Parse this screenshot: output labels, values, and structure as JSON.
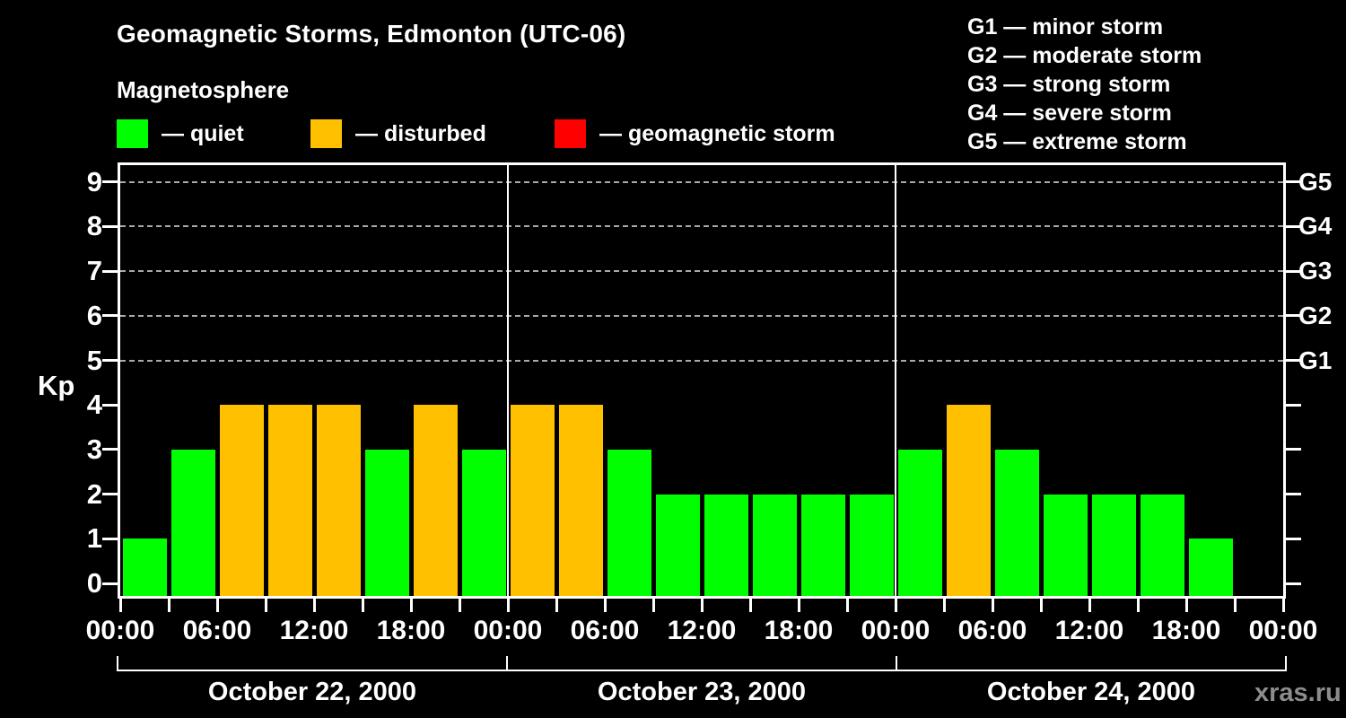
{
  "title": "Geomagnetic Storms, Edmonton (UTC-06)",
  "subtitle": "Magnetosphere",
  "legend": {
    "items": [
      {
        "name": "quiet",
        "label": "— quiet",
        "color": "#00ff00"
      },
      {
        "name": "disturbed",
        "label": "— disturbed",
        "color": "#ffc000"
      },
      {
        "name": "storm",
        "label": "— geomagnetic storm",
        "color": "#ff0000"
      }
    ]
  },
  "storm_scale": {
    "items": [
      "G1 — minor storm",
      "G2 — moderate storm",
      "G3 — strong storm",
      "G4 — severe storm",
      "G5 — extreme storm"
    ]
  },
  "watermark": "xras.ru",
  "chart_data": {
    "type": "bar",
    "title": "Geomagnetic Storms, Edmonton (UTC-06)",
    "ylabel": "Kp",
    "ylim": [
      0,
      9
    ],
    "yticks": [
      0,
      1,
      2,
      3,
      4,
      5,
      6,
      7,
      8,
      9
    ],
    "gridlines_at": [
      5,
      6,
      7,
      8,
      9
    ],
    "grid": "dashed, only at Kp 5-9",
    "legend_position": "top",
    "right_axis": [
      {
        "kp": 9,
        "label": "G5"
      },
      {
        "kp": 8,
        "label": "G4"
      },
      {
        "kp": 7,
        "label": "G3"
      },
      {
        "kp": 6,
        "label": "G2"
      },
      {
        "kp": 5,
        "label": "G1"
      }
    ],
    "x_tick_interval_hours": 3,
    "x_label_interval_hours": 6,
    "x_labels": [
      "00:00",
      "06:00",
      "12:00",
      "18:00",
      "00:00",
      "06:00",
      "12:00",
      "18:00",
      "00:00",
      "06:00",
      "12:00",
      "18:00",
      "00:00"
    ],
    "colors": {
      "quiet": "#00ff00",
      "disturbed": "#ffc000",
      "storm": "#ff0000"
    },
    "days": [
      {
        "date": "October 22, 2000",
        "bars": [
          {
            "h": "00:00",
            "kp": 1,
            "state": "quiet"
          },
          {
            "h": "03:00",
            "kp": 3,
            "state": "quiet"
          },
          {
            "h": "06:00",
            "kp": 4,
            "state": "disturbed"
          },
          {
            "h": "09:00",
            "kp": 4,
            "state": "disturbed"
          },
          {
            "h": "12:00",
            "kp": 4,
            "state": "disturbed"
          },
          {
            "h": "15:00",
            "kp": 3,
            "state": "quiet"
          },
          {
            "h": "18:00",
            "kp": 4,
            "state": "disturbed"
          },
          {
            "h": "21:00",
            "kp": 3,
            "state": "quiet"
          }
        ]
      },
      {
        "date": "October 23, 2000",
        "bars": [
          {
            "h": "00:00",
            "kp": 4,
            "state": "disturbed"
          },
          {
            "h": "03:00",
            "kp": 4,
            "state": "disturbed"
          },
          {
            "h": "06:00",
            "kp": 3,
            "state": "quiet"
          },
          {
            "h": "09:00",
            "kp": 2,
            "state": "quiet"
          },
          {
            "h": "12:00",
            "kp": 2,
            "state": "quiet"
          },
          {
            "h": "15:00",
            "kp": 2,
            "state": "quiet"
          },
          {
            "h": "18:00",
            "kp": 2,
            "state": "quiet"
          },
          {
            "h": "21:00",
            "kp": 2,
            "state": "quiet"
          }
        ]
      },
      {
        "date": "October 24, 2000",
        "bars": [
          {
            "h": "00:00",
            "kp": 3,
            "state": "quiet"
          },
          {
            "h": "03:00",
            "kp": 4,
            "state": "disturbed"
          },
          {
            "h": "06:00",
            "kp": 3,
            "state": "quiet"
          },
          {
            "h": "09:00",
            "kp": 2,
            "state": "quiet"
          },
          {
            "h": "12:00",
            "kp": 2,
            "state": "quiet"
          },
          {
            "h": "15:00",
            "kp": 2,
            "state": "quiet"
          },
          {
            "h": "18:00",
            "kp": 1,
            "state": "quiet"
          },
          {
            "h": "21:00",
            "kp": null,
            "state": "none"
          }
        ]
      }
    ]
  }
}
